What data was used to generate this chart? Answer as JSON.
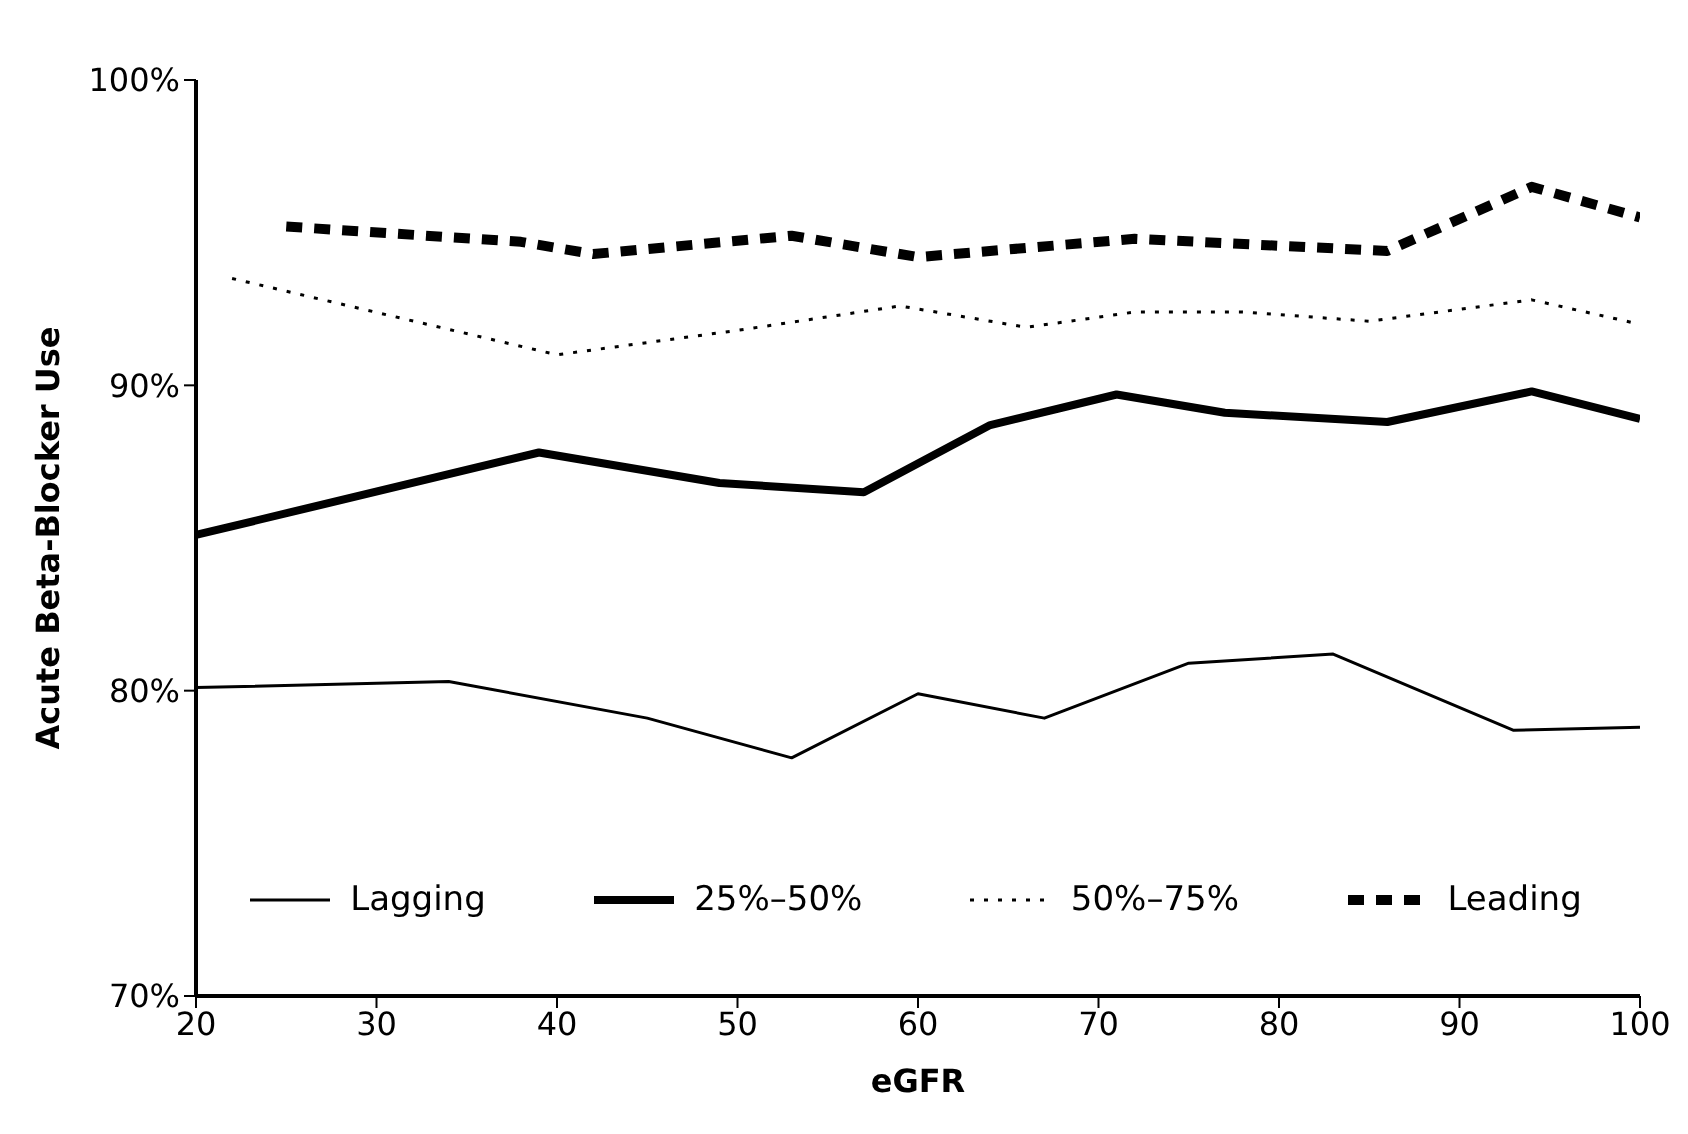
{
  "chart_data": {
    "type": "line",
    "xlabel": "eGFR",
    "ylabel": "Acute Beta-Blocker Use",
    "xlim": [
      20,
      100
    ],
    "xticks": [
      20,
      30,
      40,
      50,
      60,
      70,
      80,
      90,
      100
    ],
    "ylim": [
      70,
      100
    ],
    "yticks": [
      {
        "value": 70,
        "label": "70%"
      },
      {
        "value": 80,
        "label": "80%"
      },
      {
        "value": 90,
        "label": "90%"
      },
      {
        "value": 100,
        "label": "100%"
      }
    ],
    "grid": false,
    "legend": "bottom",
    "marker": "none",
    "series": [
      {
        "name": "Lagging",
        "color": "#000000",
        "line_style": "solid",
        "x": [
          20,
          34,
          45,
          53,
          60,
          67,
          75,
          83,
          93,
          100
        ],
        "values": [
          80.1,
          80.3,
          79.1,
          77.8,
          79.9,
          79.1,
          80.9,
          81.2,
          78.7,
          78.8
        ]
      },
      {
        "name": "25%–50%",
        "color": "#000000",
        "line_style": "solid",
        "x": [
          20,
          39,
          49,
          57,
          64,
          71,
          77,
          86,
          94,
          100
        ],
        "values": [
          85.1,
          87.8,
          86.8,
          86.5,
          88.7,
          89.7,
          89.1,
          88.8,
          89.8,
          88.9
        ]
      },
      {
        "name": "50%–75%",
        "color": "#000000",
        "line_style": "dotted",
        "x": [
          22,
          40,
          50,
          59,
          66,
          72,
          78,
          85,
          94,
          100
        ],
        "values": [
          93.5,
          91.0,
          91.8,
          92.6,
          91.9,
          92.4,
          92.4,
          92.1,
          92.8,
          92.0
        ]
      },
      {
        "name": "Leading",
        "color": "#000000",
        "line_style": "dashed",
        "x": [
          25,
          38,
          42,
          53,
          60,
          72,
          86,
          94,
          100
        ],
        "values": [
          95.2,
          94.7,
          94.3,
          94.9,
          94.2,
          94.8,
          94.4,
          96.5,
          95.5
        ]
      }
    ]
  }
}
